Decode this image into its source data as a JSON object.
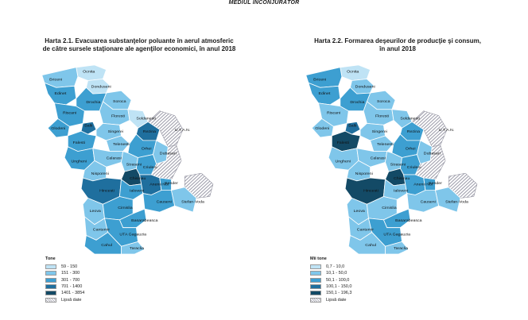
{
  "header": "MEDIUL ÎNCONJURĂTOR",
  "map1": {
    "title_line1": "Harta 2.1. Evacuarea substanţelor poluante în aerul atmosferic",
    "title_line2": "de către sursele staţionare ale agenţilor economici, în anul 2018",
    "legend_title": "Tone",
    "legend_items": [
      "59 - 150",
      "151 - 300",
      "301 - 700",
      "701 - 1400",
      "1401 - 3854"
    ],
    "nodata_label": "Lipsă date"
  },
  "map2": {
    "title_line1": "Harta 2.2. Formarea deşeurilor de producţie şi consum,",
    "title_line2": "în anul 2018",
    "legend_title": "Mii tone",
    "legend_items": [
      "0,7 - 10,0",
      "10,1 - 50,0",
      "50,1 - 100,0",
      "100,1 - 150,0",
      "150,1 - 196,3"
    ],
    "nodata_label": "Lipsă date"
  },
  "palette": [
    "#bfe3f5",
    "#7fc6ea",
    "#3d9fd1",
    "#1f6f9e",
    "#134a66"
  ],
  "nodata_color": "#c9c9d3",
  "regions": [
    {
      "name": "Ocnita",
      "c1": 0,
      "c2": 0
    },
    {
      "name": "Briceni",
      "c1": 1,
      "c2": 2
    },
    {
      "name": "Donduseni",
      "c1": 0,
      "c2": 1
    },
    {
      "name": "Edinet",
      "c1": 2,
      "c2": 2
    },
    {
      "name": "Soroca",
      "c1": 1,
      "c2": 1
    },
    {
      "name": "Drochia",
      "c1": 2,
      "c2": 2
    },
    {
      "name": "Riscani",
      "c1": 2,
      "c2": 1
    },
    {
      "name": "Floresti",
      "c1": 1,
      "c2": 1
    },
    {
      "name": "Soldanesti",
      "c1": 0,
      "c2": 1
    },
    {
      "name": "Glodeni",
      "c1": 2,
      "c2": 1
    },
    {
      "name": "Balti",
      "c1": 3,
      "c2": 3
    },
    {
      "name": "Singerei",
      "c1": 1,
      "c2": 1
    },
    {
      "name": "Rezina",
      "c1": 3,
      "c2": 2
    },
    {
      "name": "Falesti",
      "c1": 2,
      "c2": 4
    },
    {
      "name": "Telenesti",
      "c1": 1,
      "c2": 1
    },
    {
      "name": "Orhei",
      "c1": 2,
      "c2": 2
    },
    {
      "name": "Ungheni",
      "c1": 2,
      "c2": 1
    },
    {
      "name": "Calarasi",
      "c1": 1,
      "c2": 1
    },
    {
      "name": "Dubasari",
      "c1": 1,
      "c2": 1
    },
    {
      "name": "Straseni",
      "c1": 1,
      "c2": 1
    },
    {
      "name": "Criuleni",
      "c1": 2,
      "c2": 2
    },
    {
      "name": "Nisporeni",
      "c1": 1,
      "c2": 1
    },
    {
      "name": "Chisinau",
      "c1": 4,
      "c2": 4
    },
    {
      "name": "Hincesti",
      "c1": 3,
      "c2": 4
    },
    {
      "name": "Ialoveni",
      "c1": 2,
      "c2": 1
    },
    {
      "name": "Anenii Noi",
      "c1": 3,
      "c2": 2
    },
    {
      "name": "Causeni",
      "c1": 2,
      "c2": 1
    },
    {
      "name": "Leova",
      "c1": 1,
      "c2": 1
    },
    {
      "name": "Cimislia",
      "c1": 2,
      "c2": 1
    },
    {
      "name": "Stefan-Voda",
      "c1": 1,
      "c2": 1
    },
    {
      "name": "Basarabeasca",
      "c1": 2,
      "c2": 2
    },
    {
      "name": "Cantemir",
      "c1": 1,
      "c2": 1
    },
    {
      "name": "UTA Gagauzia",
      "c1": 2,
      "c2": 2
    },
    {
      "name": "Taraclia",
      "c1": 1,
      "c2": 1
    },
    {
      "name": "Cahul",
      "c1": 2,
      "c2": 1
    },
    {
      "name": "Bender",
      "c1": 2,
      "c2": 2
    }
  ],
  "nodata_label_map": "U.T.A.N."
}
